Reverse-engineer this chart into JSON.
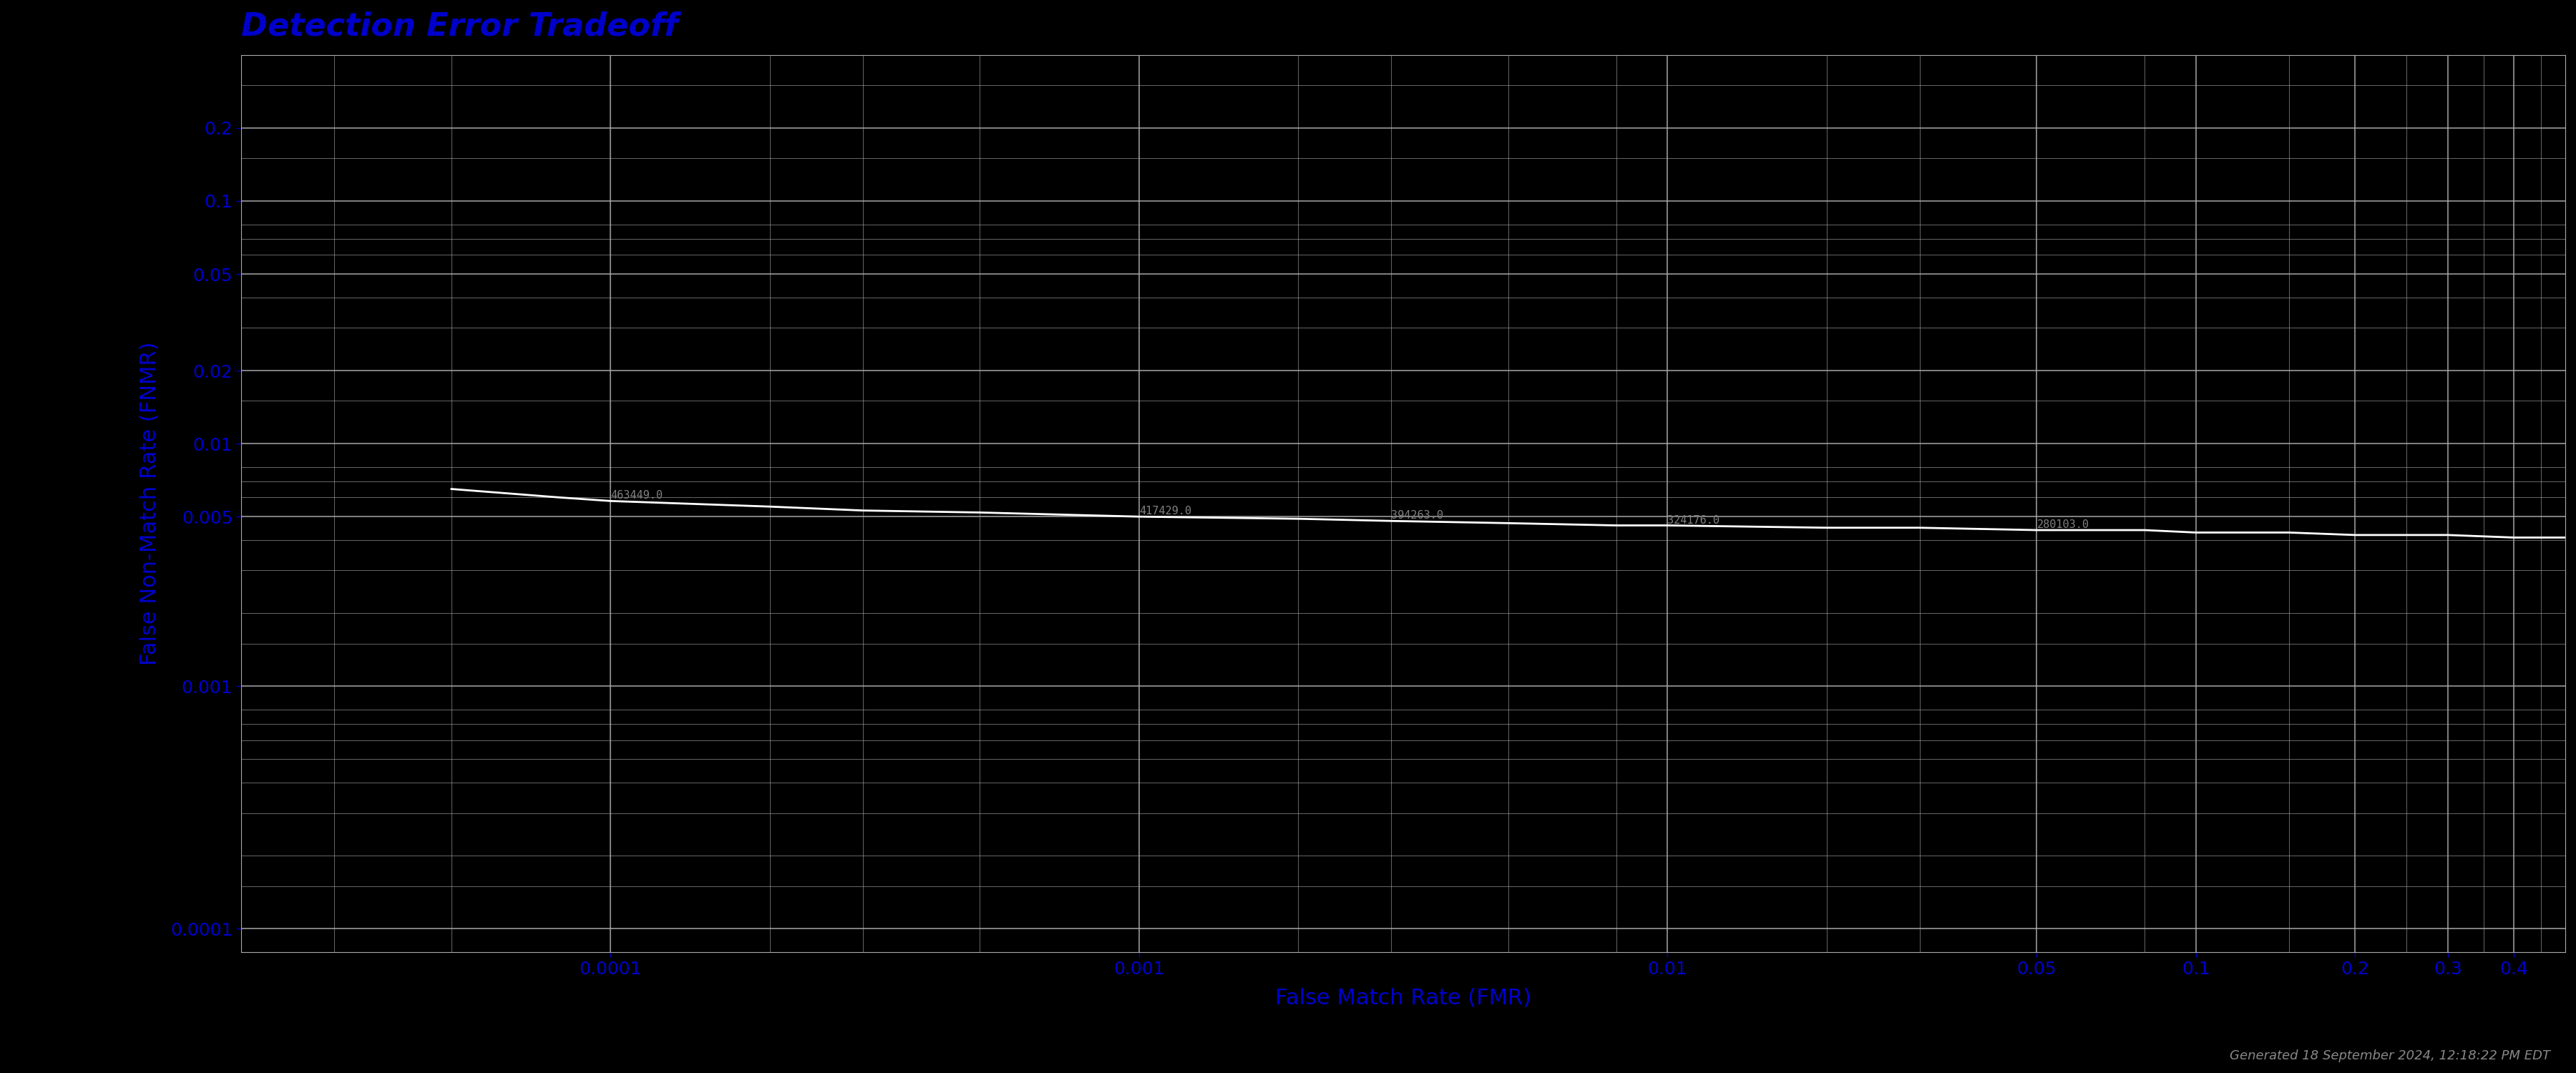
{
  "title": "Detection Error Tradeoff",
  "xlabel": "False Match Rate (FMR)",
  "ylabel": "False Non-Match Rate (FNMR)",
  "background_color": "#000000",
  "title_color": "#0000CC",
  "axis_label_color": "#0000CC",
  "tick_label_color": "#0000CC",
  "grid_color": "#aaaaaa",
  "curve_color": "#ffffff",
  "annotation_color": "#808080",
  "generated_text": "Generated 18 September 2024, 12:18:22 PM EDT",
  "ytick_vals": [
    0.2,
    0.1,
    0.05,
    0.02,
    0.01,
    0.005,
    0.001,
    0.0001
  ],
  "ytick_labels": [
    "0.2",
    "0.1",
    "0.05",
    "0.02",
    "0.01",
    "0.005",
    "0.001",
    "0.0001"
  ],
  "xtick_vals_label": [
    [
      0.0001,
      "0.0001"
    ],
    [
      0.001,
      "0.001"
    ],
    [
      0.01,
      "0.01"
    ],
    [
      0.05,
      "0.05"
    ],
    [
      0.1,
      "0.1"
    ],
    [
      0.2,
      "0.2"
    ],
    [
      0.3,
      "0.3"
    ],
    [
      0.4,
      "0.4"
    ]
  ],
  "fmr_values": [
    5e-05,
    8e-05,
    0.0001,
    0.0002,
    0.0003,
    0.0005,
    0.001,
    0.002,
    0.003,
    0.005,
    0.008,
    0.01,
    0.02,
    0.03,
    0.05,
    0.08,
    0.1,
    0.15,
    0.2,
    0.3,
    0.4,
    0.5
  ],
  "fnmr_values": [
    0.0065,
    0.006,
    0.0058,
    0.0055,
    0.0053,
    0.0052,
    0.005,
    0.0049,
    0.0048,
    0.0047,
    0.0046,
    0.0046,
    0.0045,
    0.0045,
    0.0044,
    0.0044,
    0.0043,
    0.0043,
    0.0042,
    0.0042,
    0.0041,
    0.0041
  ],
  "threshold_annotations": [
    {
      "label": "463449.0",
      "fmr_idx": 2,
      "fnmr_idx": 2
    },
    {
      "label": "417429.0",
      "fmr_idx": 6,
      "fnmr_idx": 6
    },
    {
      "label": "394263.0",
      "fmr_idx": 8,
      "fnmr_idx": 8
    },
    {
      "label": "324176.0",
      "fmr_idx": 11,
      "fnmr_idx": 11
    },
    {
      "label": "280103.0",
      "fmr_idx": 14,
      "fnmr_idx": 14
    }
  ],
  "xscale_ticks": [
    0.0001,
    0.0002,
    0.0003,
    0.0005,
    0.001,
    0.002,
    0.003,
    0.005,
    0.01,
    0.02,
    0.03,
    0.05,
    0.1,
    0.2,
    0.3,
    0.4,
    0.5
  ],
  "yscale_ticks": [
    0.2,
    0.1,
    0.05,
    0.02,
    0.01,
    0.005,
    0.002,
    0.001,
    0.0005,
    0.0002,
    0.0001
  ]
}
